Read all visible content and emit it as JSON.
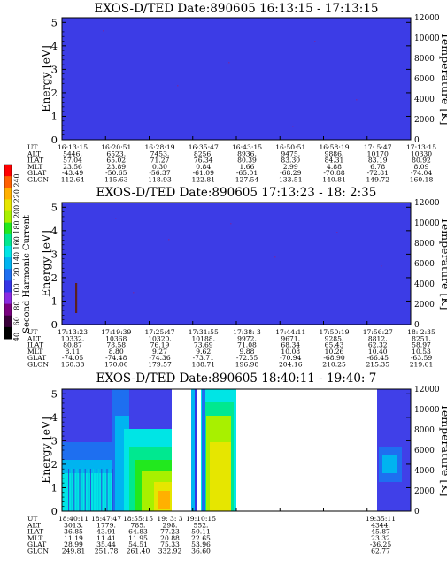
{
  "chart_data": {
    "type": "heatmap",
    "colorbar": {
      "label": "Second Harmonic Current",
      "ticks": [
        "40",
        "60",
        "80",
        "100",
        "120",
        "140",
        "160",
        "180",
        "200",
        "220",
        "240"
      ],
      "colors": [
        "#000000",
        "#3a003a",
        "#7a0080",
        "#8a2be2",
        "#3535e6",
        "#1e6ff0",
        "#00b4f0",
        "#00e5e5",
        "#00e890",
        "#22e81e",
        "#a8f000",
        "#e6e600",
        "#ffb000",
        "#ff6000",
        "#ff0000"
      ]
    },
    "panels": [
      {
        "title": "EXOS-D/TED   Date:890605  16:13:15 - 17:13:15",
        "ylabel": "Energy [eV]",
        "y2label": "Temperature [K]",
        "yticks": [
          "0",
          "1",
          "2",
          "3",
          "4",
          "5"
        ],
        "y2ticks": [
          "0",
          "2000",
          "4000",
          "6000",
          "8000",
          "10000",
          "12000"
        ],
        "ylim": [
          0,
          5.2
        ],
        "y2lim": [
          0,
          12000
        ],
        "table": {
          "rows": [
            {
              "name": "UT",
              "values": [
                "16:13:15",
                "16:20:51",
                "16:28:19",
                "16:35:47",
                "16:43:15",
                "16:50:51",
                "16:58:19",
                "17: 5:47",
                "17:13:15"
              ]
            },
            {
              "name": "ALT",
              "values": [
                "5446.",
                "6523.",
                "7453.",
                "8256.",
                "8936.",
                "9475.",
                "9886.",
                "10170",
                "10330"
              ]
            },
            {
              "name": "ILAT",
              "values": [
                "57.04",
                "65.02",
                "71.27",
                "76.34",
                "80.39",
                "83.30",
                "84.31",
                "83.19",
                "80.92"
              ]
            },
            {
              "name": "MLT",
              "values": [
                "23.56",
                "23.89",
                "0.30",
                "0.84",
                "1.66",
                "2.99",
                "4.88",
                "6.78",
                "8.09"
              ]
            },
            {
              "name": "GLAT",
              "values": [
                "-43.49",
                "-50.65",
                "-56.37",
                "-61.09",
                "-65.01",
                "-68.29",
                "-70.88",
                "-72.81",
                "-74.04"
              ]
            },
            {
              "name": "GLON",
              "values": [
                "112.64",
                "115.63",
                "118.93",
                "122.81",
                "127.54",
                "133.51",
                "140.81",
                "149.72",
                "160.18"
              ]
            }
          ]
        }
      },
      {
        "title": "EXOS-D/TED   Date:890605  17:13:23 - 18: 2:35",
        "ylabel": "Energy [eV]",
        "y2label": "Temperature [K]",
        "yticks": [
          "0",
          "1",
          "2",
          "3",
          "4",
          "5"
        ],
        "y2ticks": [
          "0",
          "2000",
          "4000",
          "6000",
          "8000",
          "10000",
          "12000"
        ],
        "ylim": [
          0,
          5.2
        ],
        "y2lim": [
          0,
          12000
        ],
        "table": {
          "rows": [
            {
              "name": "UT",
              "values": [
                "17:13:23",
                "17:19:39",
                "17:25:47",
                "17:31:55",
                "17:38: 3",
                "17:44:11",
                "17:50:19",
                "17:56:27",
                "18: 2:35"
              ]
            },
            {
              "name": "ALT",
              "values": [
                "10332.",
                "10368",
                "10320.",
                "10188.",
                "9972.",
                "9671.",
                "9285.",
                "8812.",
                "8251."
              ]
            },
            {
              "name": "ILAT",
              "values": [
                "80.87",
                "78.58",
                "76.19",
                "73.69",
                "71.08",
                "68.34",
                "65.43",
                "62.32",
                "58.97"
              ]
            },
            {
              "name": "MLT",
              "values": [
                "8.11",
                "8.80",
                "9.27",
                "9.62",
                "9.88",
                "10.08",
                "10.26",
                "10.40",
                "10.53"
              ]
            },
            {
              "name": "GLAT",
              "values": [
                "-74.05",
                "-74.48",
                "-74.36",
                "-73.71",
                "-72.55",
                "-70.94",
                "-68.90",
                "-66.45",
                "-63.59"
              ]
            },
            {
              "name": "GLON",
              "values": [
                "160.38",
                "170.00",
                "179.57",
                "188.71",
                "196.98",
                "204.16",
                "210.25",
                "215.35",
                "219.61"
              ]
            }
          ]
        }
      },
      {
        "title": "EXOS-D/TED   Date:890605  18:40:11 - 19:40: 7",
        "ylabel": "Energy [eV]",
        "y2label": "Temperature [K]",
        "yticks": [
          "0",
          "1",
          "2",
          "3",
          "4",
          "5"
        ],
        "y2ticks": [
          "0",
          "2000",
          "4000",
          "6000",
          "8000",
          "10000",
          "12000"
        ],
        "ylim": [
          0,
          5.2
        ],
        "y2lim": [
          0,
          12000
        ],
        "table": {
          "rows": [
            {
              "name": "UT",
              "values": [
                "18:40:11",
                "18:47:47",
                "18:55:15",
                "19: 3: 3",
                "19:10:15",
                "",
                "",
                "19:35:11"
              ]
            },
            {
              "name": "ALT",
              "values": [
                "3013.",
                "1779.",
                "785.",
                "298.",
                "552.",
                "",
                "",
                "4344."
              ]
            },
            {
              "name": "ILAT",
              "values": [
                "36.85",
                "43.91",
                "64.83",
                "77.23",
                "50.11",
                "",
                "",
                "45.87"
              ]
            },
            {
              "name": "MLT",
              "values": [
                "11.19",
                "11.41",
                "11.95",
                "20.88",
                "22.65",
                "",
                "",
                "23.32"
              ]
            },
            {
              "name": "GLAT",
              "values": [
                "28.99",
                "35.44",
                "54.51",
                "75.33",
                "53.96",
                "",
                "",
                "-36.25"
              ]
            },
            {
              "name": "GLON",
              "values": [
                "249.81",
                "251.78",
                "261.40",
                "332.92",
                "36.60",
                "",
                "",
                "62.77"
              ]
            }
          ]
        }
      }
    ]
  }
}
